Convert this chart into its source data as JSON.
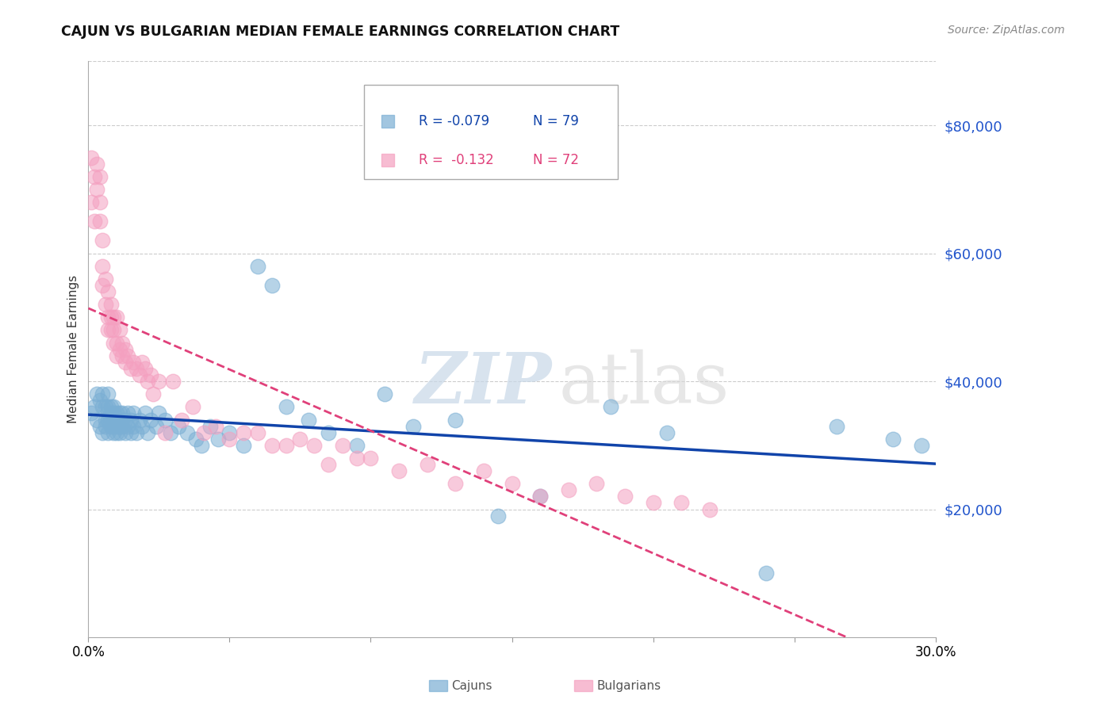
{
  "title": "CAJUN VS BULGARIAN MEDIAN FEMALE EARNINGS CORRELATION CHART",
  "source": "Source: ZipAtlas.com",
  "ylabel": "Median Female Earnings",
  "xlim": [
    0.0,
    0.3
  ],
  "ylim": [
    0,
    90000
  ],
  "yticks": [
    20000,
    40000,
    60000,
    80000
  ],
  "ytick_labels": [
    "$20,000",
    "$40,000",
    "$60,000",
    "$80,000"
  ],
  "xticks": [
    0.0,
    0.05,
    0.1,
    0.15,
    0.2,
    0.25,
    0.3
  ],
  "xtick_labels": [
    "0.0%",
    "",
    "",
    "",
    "",
    "",
    "30.0%"
  ],
  "cajun_color": "#7bafd4",
  "bulgarian_color": "#f4a0c0",
  "cajun_line_color": "#1144aa",
  "bulgarian_line_color": "#e0407a",
  "watermark_zip": "ZIP",
  "watermark_atlas": "atlas",
  "legend_R_cajun": "R = -0.079",
  "legend_N_cajun": "N = 79",
  "legend_R_bulgarian": "R =  -0.132",
  "legend_N_bulgarian": "N = 72",
  "cajun_x": [
    0.001,
    0.002,
    0.003,
    0.003,
    0.004,
    0.004,
    0.005,
    0.005,
    0.005,
    0.006,
    0.006,
    0.006,
    0.007,
    0.007,
    0.007,
    0.007,
    0.007,
    0.008,
    0.008,
    0.008,
    0.008,
    0.009,
    0.009,
    0.009,
    0.009,
    0.009,
    0.01,
    0.01,
    0.01,
    0.01,
    0.011,
    0.011,
    0.011,
    0.012,
    0.012,
    0.012,
    0.013,
    0.013,
    0.014,
    0.014,
    0.015,
    0.015,
    0.016,
    0.016,
    0.017,
    0.018,
    0.019,
    0.02,
    0.021,
    0.022,
    0.024,
    0.025,
    0.027,
    0.029,
    0.032,
    0.035,
    0.038,
    0.04,
    0.043,
    0.046,
    0.05,
    0.055,
    0.06,
    0.065,
    0.07,
    0.078,
    0.085,
    0.095,
    0.105,
    0.115,
    0.13,
    0.145,
    0.16,
    0.185,
    0.205,
    0.24,
    0.265,
    0.285,
    0.295
  ],
  "cajun_y": [
    35000,
    36000,
    38000,
    34000,
    33000,
    37000,
    36000,
    32000,
    38000,
    34000,
    36000,
    33000,
    35000,
    34000,
    36000,
    32000,
    38000,
    33000,
    35000,
    34000,
    36000,
    33000,
    35000,
    32000,
    34000,
    36000,
    33000,
    35000,
    32000,
    34000,
    33000,
    35000,
    32000,
    34000,
    33000,
    35000,
    32000,
    34000,
    33000,
    35000,
    32000,
    34000,
    33000,
    35000,
    32000,
    34000,
    33000,
    35000,
    32000,
    34000,
    33000,
    35000,
    34000,
    32000,
    33000,
    32000,
    31000,
    30000,
    33000,
    31000,
    32000,
    30000,
    58000,
    55000,
    36000,
    34000,
    32000,
    30000,
    38000,
    33000,
    34000,
    19000,
    22000,
    36000,
    32000,
    10000,
    33000,
    31000,
    30000
  ],
  "bulgarian_x": [
    0.001,
    0.001,
    0.002,
    0.002,
    0.003,
    0.003,
    0.004,
    0.004,
    0.004,
    0.005,
    0.005,
    0.005,
    0.006,
    0.006,
    0.007,
    0.007,
    0.007,
    0.008,
    0.008,
    0.008,
    0.009,
    0.009,
    0.009,
    0.01,
    0.01,
    0.01,
    0.011,
    0.011,
    0.012,
    0.012,
    0.013,
    0.013,
    0.014,
    0.015,
    0.016,
    0.017,
    0.018,
    0.019,
    0.02,
    0.021,
    0.022,
    0.023,
    0.025,
    0.027,
    0.03,
    0.033,
    0.037,
    0.041,
    0.045,
    0.05,
    0.055,
    0.06,
    0.065,
    0.07,
    0.075,
    0.08,
    0.085,
    0.09,
    0.095,
    0.1,
    0.11,
    0.12,
    0.13,
    0.14,
    0.15,
    0.16,
    0.17,
    0.18,
    0.19,
    0.2,
    0.21,
    0.22
  ],
  "bulgarian_y": [
    68000,
    75000,
    65000,
    72000,
    74000,
    70000,
    68000,
    65000,
    72000,
    55000,
    62000,
    58000,
    52000,
    56000,
    50000,
    54000,
    48000,
    52000,
    48000,
    50000,
    46000,
    50000,
    48000,
    46000,
    50000,
    44000,
    48000,
    45000,
    46000,
    44000,
    45000,
    43000,
    44000,
    42000,
    43000,
    42000,
    41000,
    43000,
    42000,
    40000,
    41000,
    38000,
    40000,
    32000,
    40000,
    34000,
    36000,
    32000,
    33000,
    31000,
    32000,
    32000,
    30000,
    30000,
    31000,
    30000,
    27000,
    30000,
    28000,
    28000,
    26000,
    27000,
    24000,
    26000,
    24000,
    22000,
    23000,
    24000,
    22000,
    21000,
    21000,
    20000
  ]
}
